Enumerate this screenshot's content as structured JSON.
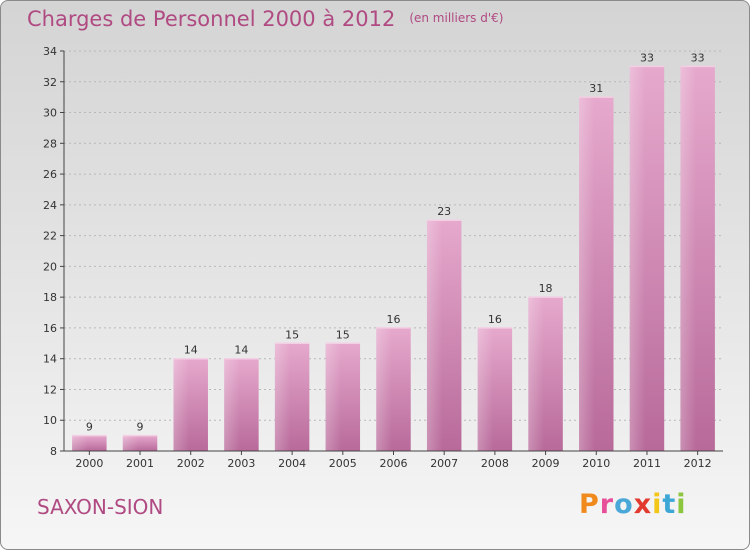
{
  "title": "Charges de Personnel 2000 à 2012",
  "subtitle": "(en milliers d'€)",
  "commune": "SAXON-SION",
  "logo": {
    "letters": [
      "P",
      "r",
      "o",
      "x",
      "i",
      "t",
      "i"
    ],
    "colors": [
      "#f08a1c",
      "#e84f9a",
      "#4aa8d8",
      "#e23a2e",
      "#f2c71a",
      "#3da7d6",
      "#8cc63e"
    ]
  },
  "colors": {
    "bar": "#cf7fae",
    "accent": "#b04a82"
  },
  "chart_data": {
    "type": "bar",
    "title": "Charges de Personnel 2000 à 2012",
    "subtitle": "(en milliers d'€)",
    "categories": [
      "2000",
      "2001",
      "2002",
      "2003",
      "2004",
      "2005",
      "2006",
      "2007",
      "2008",
      "2009",
      "2010",
      "2011",
      "2012"
    ],
    "values": [
      9,
      9,
      14,
      14,
      15,
      15,
      16,
      23,
      16,
      18,
      31,
      33,
      33
    ],
    "ylim": [
      8,
      34
    ],
    "yticks": [
      8,
      10,
      12,
      14,
      16,
      18,
      20,
      22,
      24,
      26,
      28,
      30,
      32,
      34
    ],
    "grid": true
  }
}
